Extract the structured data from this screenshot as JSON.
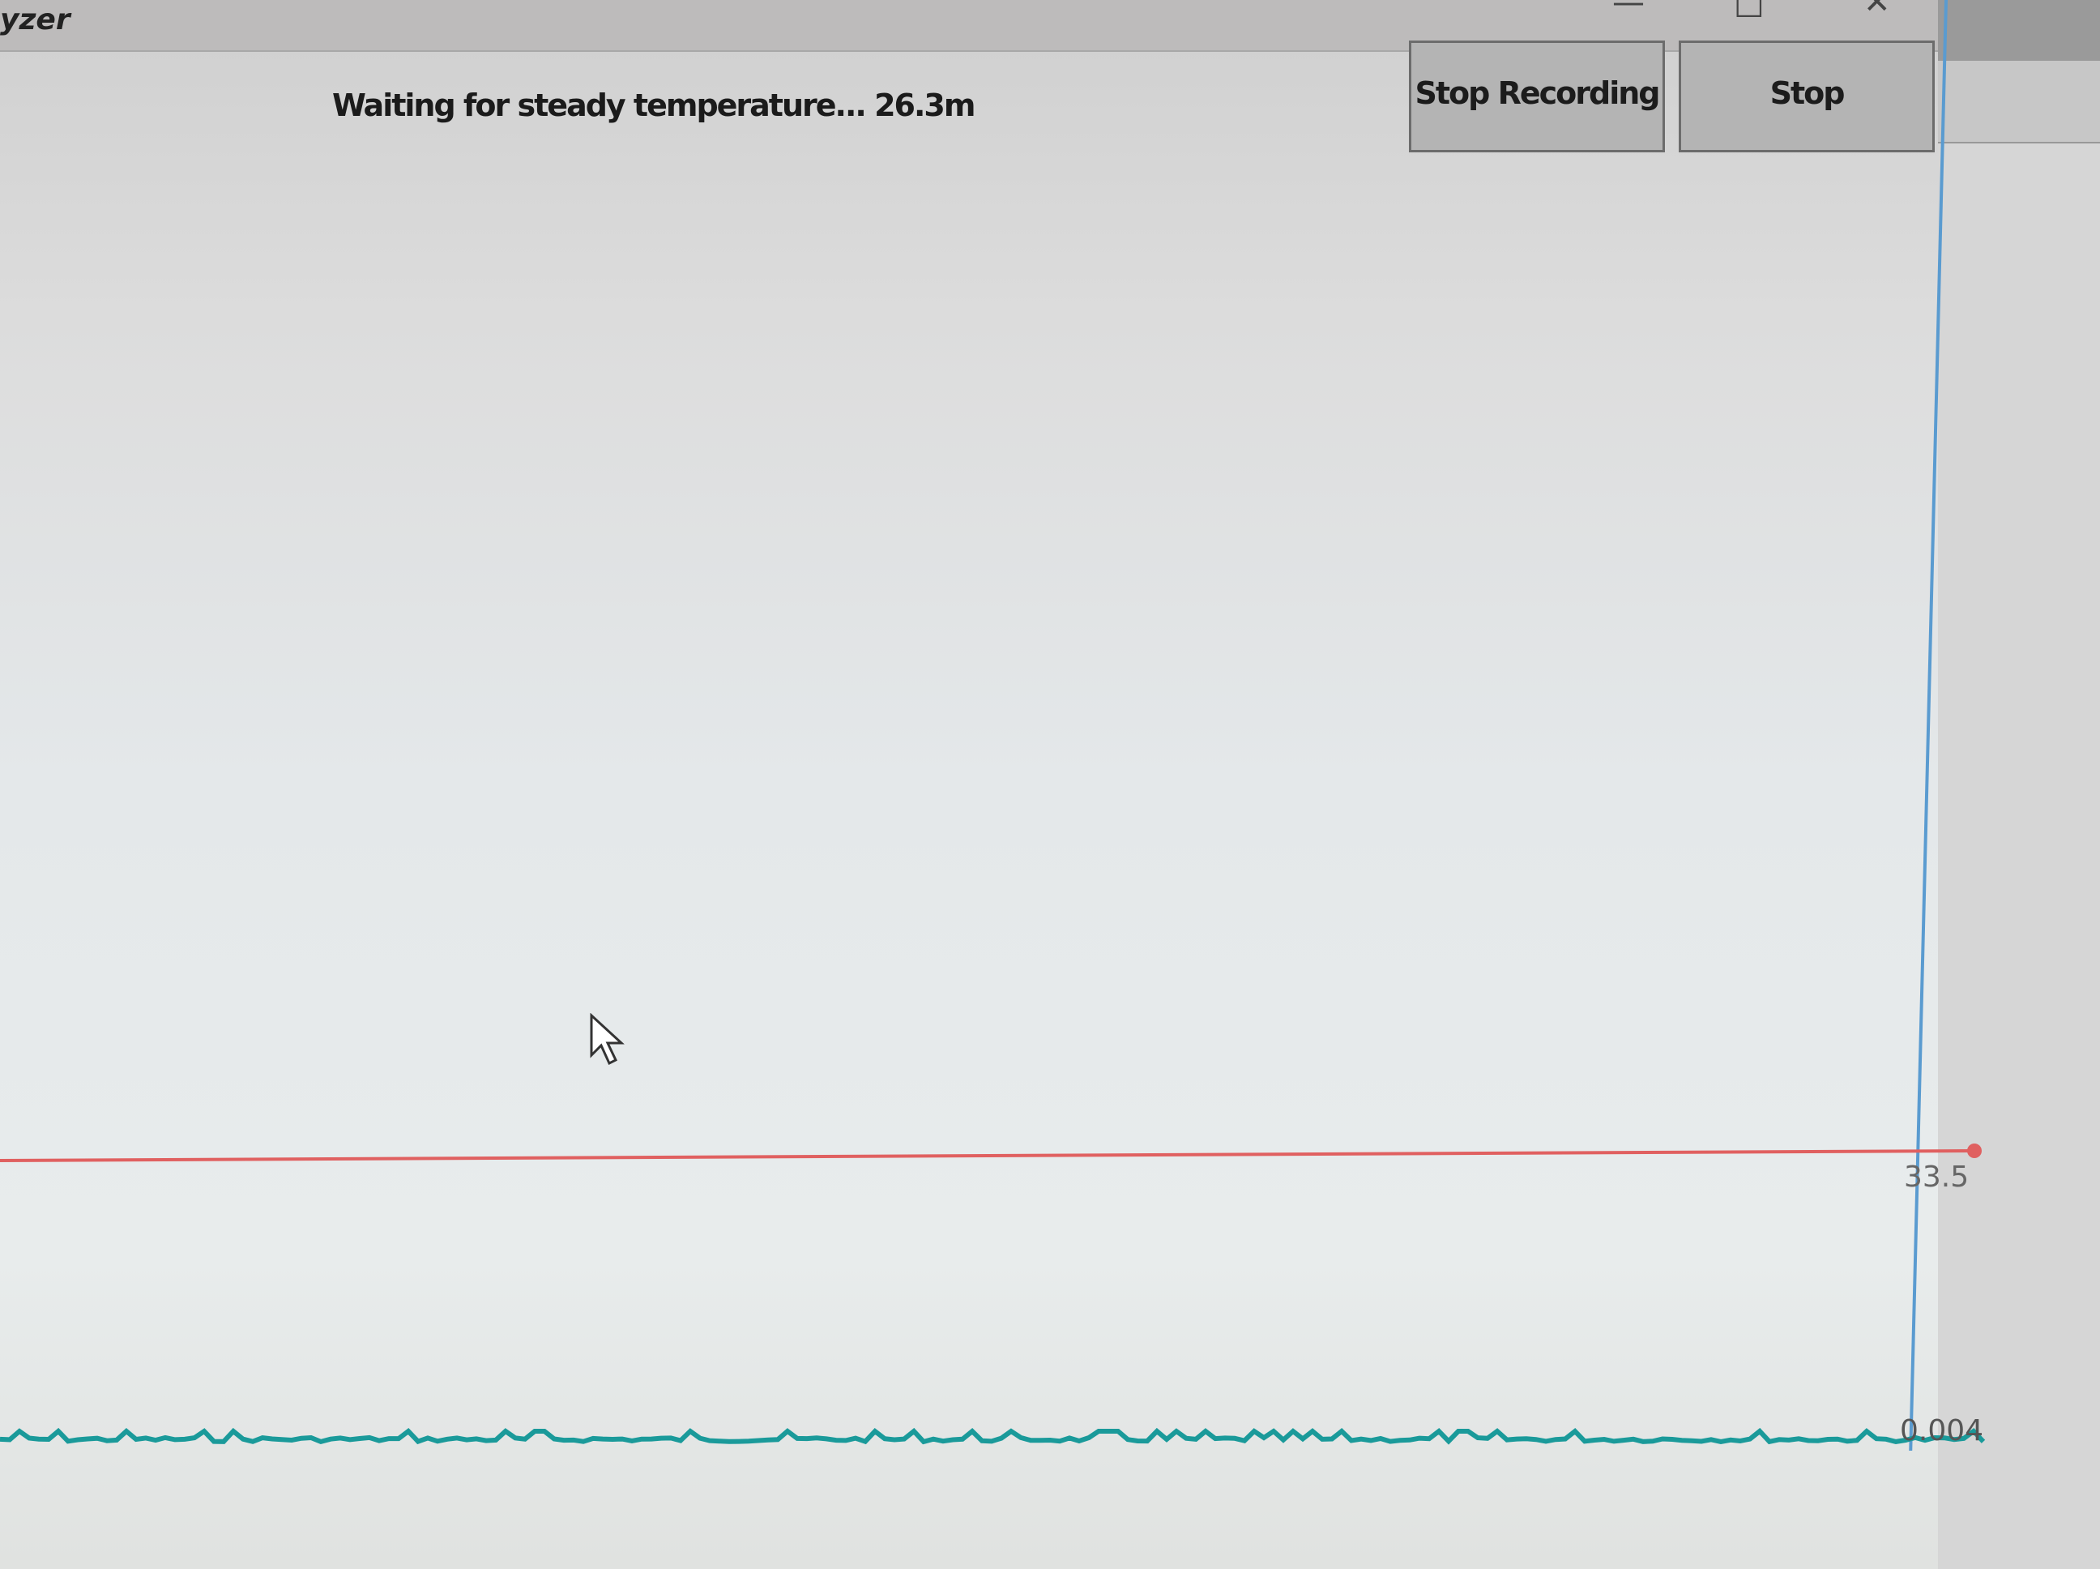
{
  "window": {
    "title": "yzer",
    "controls": [
      "minimize-icon",
      "maximize-icon",
      "close-icon"
    ]
  },
  "status": {
    "text": "Waiting for steady temperature... 26.3m"
  },
  "buttons": {
    "stop_recording": "Stop Recording",
    "stop": "Stop"
  },
  "plot": {
    "temperature": {
      "value_label": "33.5",
      "color": "#e06060"
    },
    "deviation": {
      "value_label": "0.004",
      "color": "#1a9a9a"
    },
    "cursor_line_color": "#5a9bd0"
  }
}
